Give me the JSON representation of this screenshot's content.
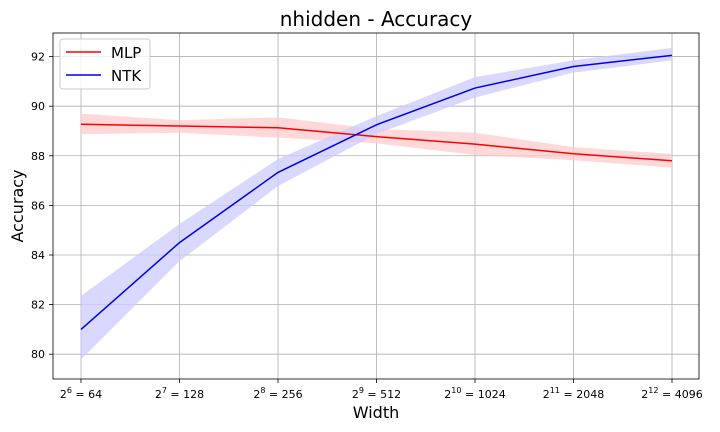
{
  "chart_data": {
    "type": "line",
    "title": "nhidden - Accuracy",
    "xlabel": "Width",
    "ylabel": "Accuracy",
    "x_scale": "log2",
    "x": [
      64,
      128,
      256,
      512,
      1024,
      2048,
      4096
    ],
    "x_tick_labels": [
      {
        "base": "2",
        "exp": "6",
        "value": "64"
      },
      {
        "base": "2",
        "exp": "7",
        "value": "128"
      },
      {
        "base": "2",
        "exp": "8",
        "value": "256"
      },
      {
        "base": "2",
        "exp": "9",
        "value": "512"
      },
      {
        "base": "2",
        "exp": "10",
        "value": "1024"
      },
      {
        "base": "2",
        "exp": "11",
        "value": "2048"
      },
      {
        "base": "2",
        "exp": "12",
        "value": "4096"
      }
    ],
    "y_ticks": [
      80,
      82,
      84,
      86,
      88,
      90,
      92
    ],
    "ylim": [
      79.0,
      92.95
    ],
    "grid": true,
    "legend_position": "top-left",
    "series": [
      {
        "name": "MLP",
        "color": "#ff0000",
        "band_color": "#ffcccc",
        "values": [
          89.27,
          89.2,
          89.13,
          88.77,
          88.47,
          88.08,
          87.8
        ],
        "lower": [
          88.87,
          88.93,
          88.73,
          88.5,
          88.03,
          87.82,
          87.52
        ],
        "upper": [
          89.7,
          89.43,
          89.55,
          89.08,
          88.93,
          88.35,
          88.07
        ]
      },
      {
        "name": "NTK",
        "color": "#0000ee",
        "band_color": "#ccccff",
        "values": [
          81.0,
          84.5,
          87.33,
          89.25,
          90.73,
          91.6,
          92.05
        ],
        "lower": [
          79.78,
          83.75,
          86.78,
          88.88,
          90.35,
          91.35,
          91.85
        ],
        "upper": [
          82.35,
          85.25,
          87.87,
          89.6,
          91.17,
          91.85,
          92.35
        ]
      }
    ]
  }
}
